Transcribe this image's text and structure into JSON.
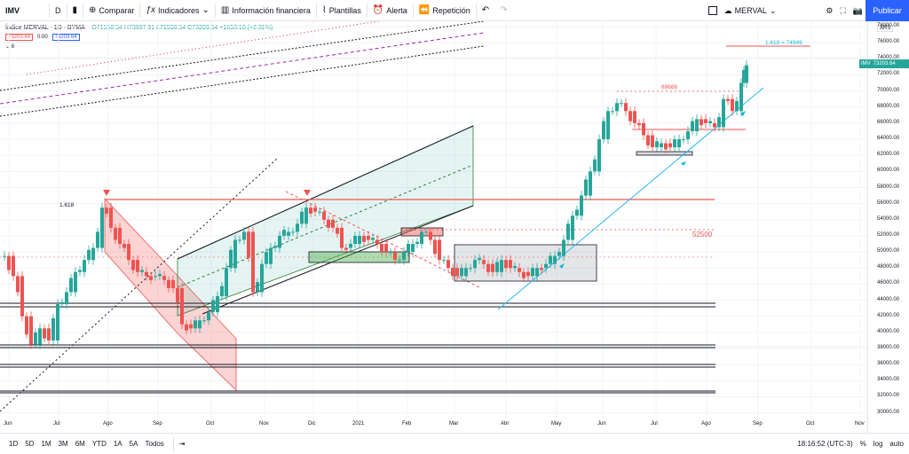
{
  "toolbar": {
    "symbol": "IMV",
    "interval": "D",
    "compare": "Comparar",
    "indicators": "Indicadores",
    "financial": "Información financiera",
    "templates": "Plantillas",
    "alert": "Alerta",
    "replay": "Repetición",
    "layout_name": "MERVAL",
    "publish": "Publicar"
  },
  "legend": {
    "title": "Índice MERVAL · 1D · BYMA",
    "ohlc": "O71550.54 H73997.91 L71550.54 C73203.64 +1653.10 (+2.31%)",
    "price_box": "73203.64",
    "spread": "0.00",
    "price_box2": "73203.64",
    "collapse": "8"
  },
  "price_axis": {
    "labels": [
      "78000.00",
      "76000.00",
      "74000.00",
      "72000.00",
      "70000.00",
      "68000.00",
      "66000.00",
      "64000.00",
      "62000.00",
      "60000.00",
      "58000.00",
      "56000.00",
      "54000.00",
      "52000.00",
      "50000.00",
      "48000.00",
      "46000.00",
      "44000.00",
      "42000.00",
      "40000.00",
      "38000.00",
      "36000.00",
      "34000.00",
      "32000.00",
      "30000.00"
    ],
    "currency": "ARS",
    "last_symbol": "IMV",
    "last_price": "73203.64"
  },
  "time_axis": [
    "Jun",
    "Jul",
    "Ago",
    "Sep",
    "Oct",
    "Nov",
    "Dic",
    "2021",
    "Feb",
    "Mar",
    "Abr",
    "May",
    "Jun",
    "Jul",
    "Ago",
    "Sep",
    "Oct",
    "Nov"
  ],
  "annotations": {
    "fib_top": "1.618 = 74949",
    "fib_left": "1.618",
    "level_69688": "69688",
    "level_52500": "52500"
  },
  "bottombar": {
    "ranges": [
      "1D",
      "5D",
      "1M",
      "3M",
      "6M",
      "YTD",
      "1A",
      "5A",
      "Todos"
    ],
    "clock": "18:16:52 (UTC-3)",
    "pct": "%",
    "log": "log",
    "auto": "auto"
  },
  "colors": {
    "up": "#26a69a",
    "down": "#ef5350",
    "accent": "#2962ff"
  }
}
